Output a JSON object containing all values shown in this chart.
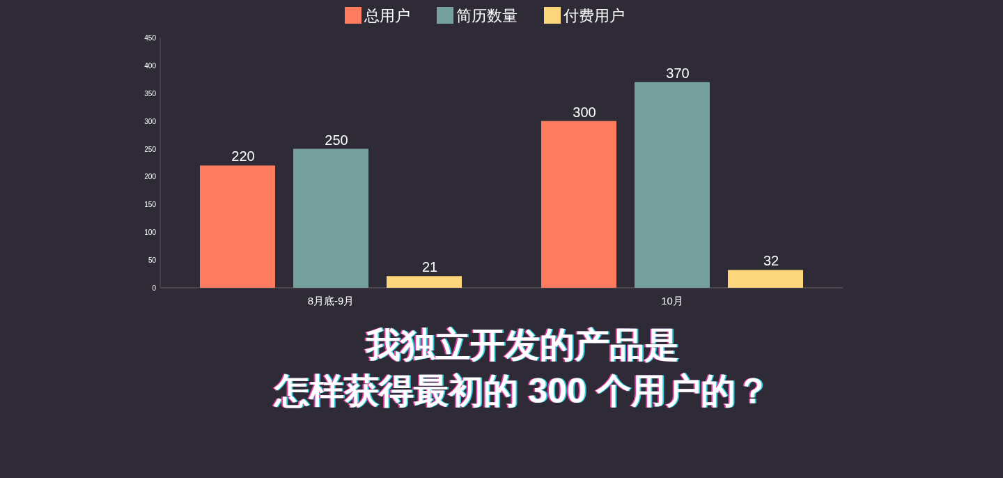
{
  "chart_data": {
    "type": "bar",
    "title": "我独立开发的产品是",
    "subtitle": "怎样获得最初的 300 个用户的？",
    "categories": [
      "8月底-9月",
      "10月"
    ],
    "series": [
      {
        "name": "总用户",
        "color": "#ff7b5f",
        "values": [
          220,
          300
        ]
      },
      {
        "name": "简历数量",
        "color": "#76a09b",
        "values": [
          250,
          370
        ]
      },
      {
        "name": "付费用户",
        "color": "#fdd57a",
        "values": [
          21,
          32
        ]
      }
    ],
    "ylim": [
      0,
      450
    ],
    "yticks": [
      0,
      50,
      100,
      150,
      200,
      250,
      300,
      350,
      400,
      450
    ],
    "data_labels": true,
    "legend": "top",
    "grid": false
  }
}
